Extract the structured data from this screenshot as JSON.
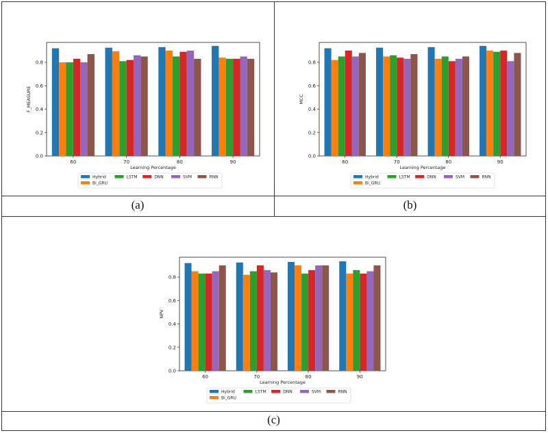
{
  "chart_data": [
    {
      "type": "bar",
      "id": "a",
      "title": "",
      "xlabel": "Learning Percentage",
      "ylabel": "F_MEASURE",
      "ylim": [
        0,
        0.97
      ],
      "yticks": [
        "0.0",
        "0.2",
        "0.4",
        "0.6",
        "0.8"
      ],
      "categories": [
        "60",
        "70",
        "80",
        "90"
      ],
      "series": [
        {
          "name": "Hybrid",
          "values": [
            0.92,
            0.925,
            0.93,
            0.94
          ]
        },
        {
          "name": "Bi_GRU",
          "values": [
            0.8,
            0.895,
            0.9,
            0.84
          ]
        },
        {
          "name": "LSTM",
          "values": [
            0.8,
            0.81,
            0.85,
            0.83
          ]
        },
        {
          "name": "DNN",
          "values": [
            0.83,
            0.82,
            0.89,
            0.83
          ]
        },
        {
          "name": "SVM",
          "values": [
            0.8,
            0.86,
            0.9,
            0.85
          ]
        },
        {
          "name": "RNN",
          "values": [
            0.87,
            0.85,
            0.83,
            0.83
          ]
        }
      ],
      "caption": "(a)"
    },
    {
      "type": "bar",
      "id": "b",
      "title": "",
      "xlabel": "Learning Percentage",
      "ylabel": "MCC",
      "ylim": [
        0,
        0.97
      ],
      "yticks": [
        "0.0",
        "0.2",
        "0.4",
        "0.6",
        "0.8"
      ],
      "categories": [
        "60",
        "70",
        "80",
        "90"
      ],
      "series": [
        {
          "name": "Hybrid",
          "values": [
            0.92,
            0.925,
            0.93,
            0.94
          ]
        },
        {
          "name": "Bi_GRU",
          "values": [
            0.82,
            0.85,
            0.83,
            0.9
          ]
        },
        {
          "name": "LSTM",
          "values": [
            0.85,
            0.86,
            0.85,
            0.89
          ]
        },
        {
          "name": "DNN",
          "values": [
            0.9,
            0.84,
            0.81,
            0.9
          ]
        },
        {
          "name": "SVM",
          "values": [
            0.85,
            0.83,
            0.83,
            0.81
          ]
        },
        {
          "name": "RNN",
          "values": [
            0.88,
            0.87,
            0.85,
            0.88
          ]
        }
      ],
      "caption": "(b)"
    },
    {
      "type": "bar",
      "id": "c",
      "title": "",
      "xlabel": "Learning Percentage",
      "ylabel": "NPV",
      "ylim": [
        0,
        0.97
      ],
      "yticks": [
        "0.0",
        "0.2",
        "0.4",
        "0.6",
        "0.8"
      ],
      "categories": [
        "60",
        "70",
        "80",
        "90"
      ],
      "series": [
        {
          "name": "Hybrid",
          "values": [
            0.92,
            0.925,
            0.93,
            0.935
          ]
        },
        {
          "name": "Bi_GRU",
          "values": [
            0.85,
            0.82,
            0.9,
            0.83
          ]
        },
        {
          "name": "LSTM",
          "values": [
            0.83,
            0.85,
            0.83,
            0.86
          ]
        },
        {
          "name": "DNN",
          "values": [
            0.83,
            0.9,
            0.86,
            0.83
          ]
        },
        {
          "name": "SVM",
          "values": [
            0.85,
            0.86,
            0.9,
            0.85
          ]
        },
        {
          "name": "RNN",
          "values": [
            0.9,
            0.84,
            0.9,
            0.9
          ]
        }
      ],
      "caption": "(c)"
    }
  ],
  "colors": [
    "#1f77b4",
    "#ff7f0e",
    "#2ca02c",
    "#d62728",
    "#9467bd",
    "#8c564b"
  ],
  "captions": {
    "a": "(a)",
    "b": "(b)",
    "c": "(c)"
  }
}
